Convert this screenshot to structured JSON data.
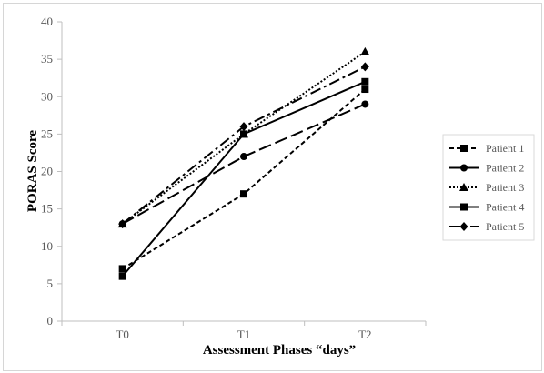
{
  "chart_data": {
    "type": "line",
    "title": "",
    "xlabel": "Assessment Phases “days”",
    "ylabel": "PORAS Score",
    "categories": [
      "T0",
      "T1",
      "T2"
    ],
    "ylim": [
      0,
      40
    ],
    "yticks": [
      0,
      5,
      10,
      15,
      20,
      25,
      30,
      35,
      40
    ],
    "grid": false,
    "legend_position": "right",
    "series": [
      {
        "name": "Patient 1",
        "values": [
          7,
          17,
          31
        ],
        "marker": "square",
        "dash": "dashed"
      },
      {
        "name": "Patient 2",
        "values": [
          13,
          22,
          29
        ],
        "marker": "circle",
        "dash": "long-dash"
      },
      {
        "name": "Patient 3",
        "values": [
          13,
          25,
          36
        ],
        "marker": "triangle",
        "dash": "dotted"
      },
      {
        "name": "Patient 4",
        "values": [
          6,
          25,
          32
        ],
        "marker": "square",
        "dash": "solid"
      },
      {
        "name": "Patient 5",
        "values": [
          13,
          26,
          34
        ],
        "marker": "diamond",
        "dash": "dash-dot"
      }
    ],
    "line_color": "#000000",
    "axis_color": "#bfbfbf"
  }
}
